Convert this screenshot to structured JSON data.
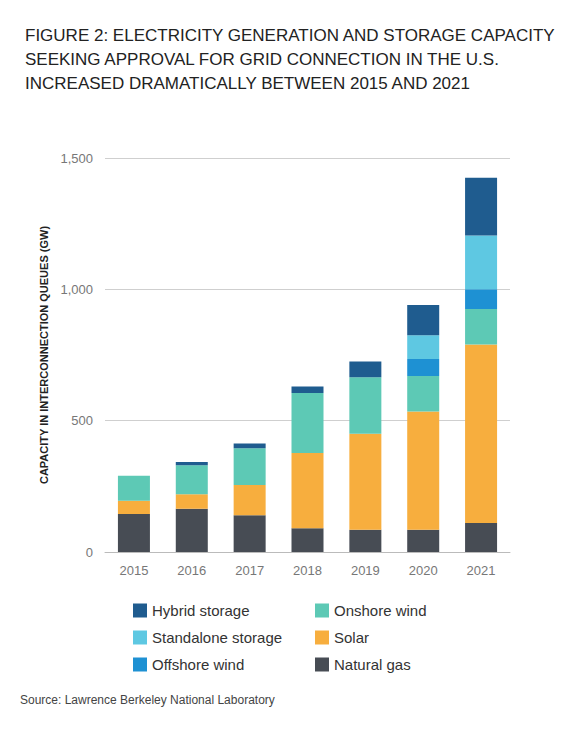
{
  "chart_data": {
    "type": "bar",
    "title": "FIGURE 2: ELECTRICITY GENERATION AND STORAGE CAPACITY SEEKING APPROVAL FOR GRID CONNECTION IN THE U.S. INCREASED DRAMATICALLY BETWEEN 2015 AND 2021",
    "y_label": "CAPACITY IN INTERCONNECTION QUEUES (GW)",
    "source": "Source: Lawrence Berkeley National Laboratory",
    "categories": [
      "2015",
      "2016",
      "2017",
      "2018",
      "2019",
      "2020",
      "2021"
    ],
    "series": [
      {
        "name": "Hybrid storage",
        "color": "#1f5c8f",
        "values": [
          null,
          13,
          18,
          25,
          60,
          115,
          220
        ]
      },
      {
        "name": "Standalone storage",
        "color": "#5ec8e2",
        "values": [
          null,
          null,
          null,
          null,
          null,
          90,
          205
        ]
      },
      {
        "name": "Offshore wind",
        "color": "#1e91d3",
        "values": [
          null,
          null,
          null,
          null,
          null,
          65,
          75
        ]
      },
      {
        "name": "Onshore wind",
        "color": "#5dc9b5",
        "values": [
          95,
          110,
          140,
          228,
          215,
          135,
          135
        ]
      },
      {
        "name": "Solar",
        "color": "#f7ae3e",
        "values": [
          50,
          55,
          115,
          287,
          365,
          450,
          680
        ]
      },
      {
        "name": "Natural gas",
        "color": "#474c54",
        "values": [
          145,
          165,
          140,
          90,
          85,
          85,
          110
        ]
      }
    ],
    "ylim": [
      0,
      1500
    ],
    "yticks": [
      0,
      500,
      {
        "value": 1000,
        "label": "1,000"
      },
      {
        "value": 1500,
        "label": "1,500"
      }
    ],
    "stacked": true,
    "grid": true,
    "legend": "bottom"
  }
}
